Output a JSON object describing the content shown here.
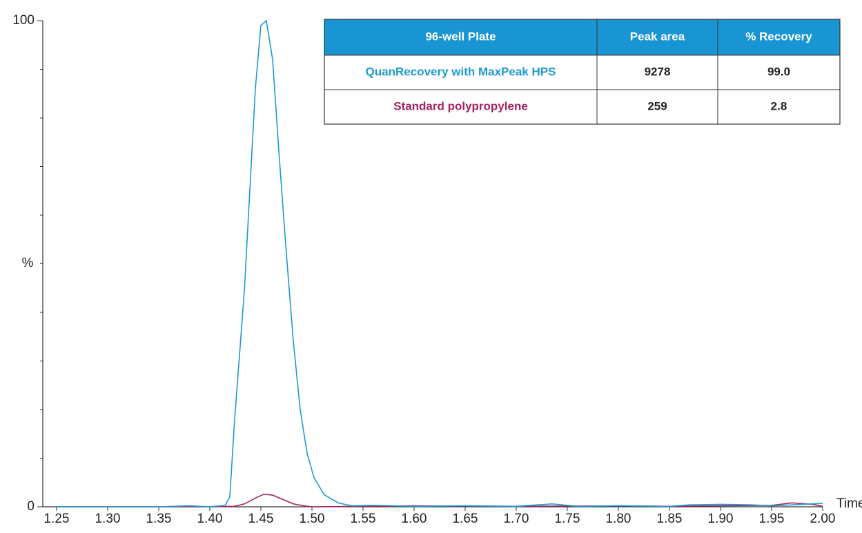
{
  "chart_data": {
    "type": "line",
    "xlabel": "Time",
    "ylabel": "%",
    "xlim": [
      1.2365,
      2.0
    ],
    "ylim": [
      0,
      100
    ],
    "xticks": [
      {
        "value": 1.25,
        "label": "1.25"
      },
      {
        "value": 1.3,
        "label": "1.30"
      },
      {
        "value": 1.35,
        "label": "1.35"
      },
      {
        "value": 1.4,
        "label": "1.40"
      },
      {
        "value": 1.45,
        "label": "1.45"
      },
      {
        "value": 1.5,
        "label": "1.50"
      },
      {
        "value": 1.55,
        "label": "1.55"
      },
      {
        "value": 1.6,
        "label": "1.60"
      },
      {
        "value": 1.65,
        "label": "1.65"
      },
      {
        "value": 1.7,
        "label": "1.70"
      },
      {
        "value": 1.75,
        "label": "1.75"
      },
      {
        "value": 1.8,
        "label": "1.80"
      },
      {
        "value": 1.85,
        "label": "1.85"
      },
      {
        "value": 1.9,
        "label": "1.90"
      },
      {
        "value": 1.95,
        "label": "1.95"
      },
      {
        "value": 2.0,
        "label": "2.00"
      }
    ],
    "yticks": [
      0,
      100
    ],
    "yminorticks": [
      10,
      20,
      30,
      40,
      50,
      60,
      70,
      80,
      90
    ],
    "series": [
      {
        "name": "QuanRecovery with MaxPeak HPS",
        "color": "#1b9ad0",
        "x": [
          1.25,
          1.3,
          1.35,
          1.38,
          1.4,
          1.415,
          1.4196,
          1.424,
          1.434,
          1.4446,
          1.45,
          1.4554,
          1.4615,
          1.468,
          1.475,
          1.4818,
          1.4885,
          1.4953,
          1.502,
          1.512,
          1.5257,
          1.539,
          1.56,
          1.6,
          1.65,
          1.7,
          1.735,
          1.76,
          1.8,
          1.85,
          1.87,
          1.9,
          1.93,
          1.95,
          1.98,
          2.0
        ],
        "values": [
          0,
          0,
          0,
          0.2,
          0,
          0.3,
          2,
          17,
          45,
          86,
          99,
          100,
          92,
          72,
          52,
          34,
          20,
          11,
          6,
          2.5,
          0.8,
          0.2,
          0.3,
          0.1,
          0.2,
          0.1,
          0.6,
          0.1,
          0.2,
          0.1,
          0.4,
          0.5,
          0.4,
          0.2,
          0.5,
          0.7
        ]
      },
      {
        "name": "Standard polypropylene",
        "color": "#a3245f",
        "x": [
          1.25,
          1.35,
          1.4,
          1.424,
          1.434,
          1.4446,
          1.453,
          1.4615,
          1.4716,
          1.4818,
          1.4919,
          1.5,
          1.55,
          1.6,
          1.7,
          1.8,
          1.85,
          1.9,
          1.95,
          1.97,
          1.99,
          2.0
        ],
        "values": [
          0,
          0,
          0,
          0.1,
          0.6,
          1.8,
          2.6,
          2.4,
          1.5,
          0.6,
          0.2,
          0,
          0.1,
          0.2,
          0.1,
          0.2,
          0.1,
          0.2,
          0.3,
          0.8,
          0.5,
          0.1
        ]
      }
    ],
    "table": {
      "header_color": "#1a95d3",
      "columns": [
        "96-well Plate",
        "Peak area",
        "% Recovery"
      ],
      "rows": [
        [
          "QuanRecovery with MaxPeak HPS",
          "9278",
          "99.0"
        ],
        [
          "Standard polypropylene",
          "259",
          "2.8"
        ]
      ]
    }
  }
}
